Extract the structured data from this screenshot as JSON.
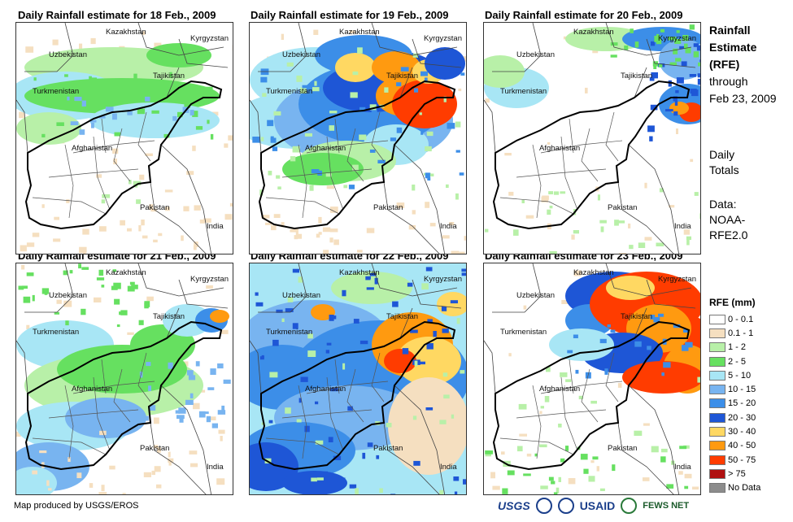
{
  "panels": [
    {
      "title": "Daily Rainfall estimate for 18 Feb., 2009",
      "pattern": "light-north"
    },
    {
      "title": "Daily Rainfall estimate for 19 Feb., 2009",
      "pattern": "heavy-northeast"
    },
    {
      "title": "Daily Rainfall estimate for 20 Feb., 2009",
      "pattern": "dry"
    },
    {
      "title": "Daily Rainfall estimate for 21 Feb., 2009",
      "pattern": "light-central"
    },
    {
      "title": "Daily Rainfall estimate for 22 Feb., 2009",
      "pattern": "widespread"
    },
    {
      "title": "Daily Rainfall estimate for 23 Feb., 2009",
      "pattern": "heavy-ne-only"
    }
  ],
  "map_labels": {
    "kazakhstan": "Kazakhstan",
    "kyrgyzstan": "Kyrgyzstan",
    "uzbekistan": "Uzbekistan",
    "tajikistan": "Tajikistan",
    "turkmenistan": "Turkmenistan",
    "afghanistan": "Afghanistan",
    "pakistan": "Pakistan",
    "india": "India"
  },
  "side": {
    "title1": "Rainfall",
    "title2": "Estimate",
    "title3": "(RFE)",
    "title4": "through",
    "title5": "Feb 23, 2009",
    "daily1": "Daily",
    "daily2": "Totals",
    "data1": "Data:",
    "data2": "NOAA-",
    "data3": "RFE2.0"
  },
  "legend": {
    "title": "RFE (mm)",
    "items": [
      {
        "label": "0 - 0.1",
        "color": "#ffffff"
      },
      {
        "label": "0.1 - 1",
        "color": "#f5dfc0"
      },
      {
        "label": "1 - 2",
        "color": "#b8f0a8"
      },
      {
        "label": "2 - 5",
        "color": "#66e060"
      },
      {
        "label": "5 - 10",
        "color": "#a8e6f5"
      },
      {
        "label": "10 - 15",
        "color": "#78b4f0"
      },
      {
        "label": "15 - 20",
        "color": "#3c8ee8"
      },
      {
        "label": "20 - 30",
        "color": "#1e56d6"
      },
      {
        "label": "30 - 40",
        "color": "#ffd862"
      },
      {
        "label": "40 - 50",
        "color": "#ff9a10"
      },
      {
        "label": "50 - 75",
        "color": "#ff3c00"
      },
      {
        "label": "> 75",
        "color": "#b01010"
      },
      {
        "label": "No Data",
        "color": "#8c8c8c"
      }
    ]
  },
  "footer": "Map produced by USGS/EROS",
  "logos": {
    "usgs": "USGS",
    "usaid": "USAID",
    "fews": "FEWS NET"
  }
}
